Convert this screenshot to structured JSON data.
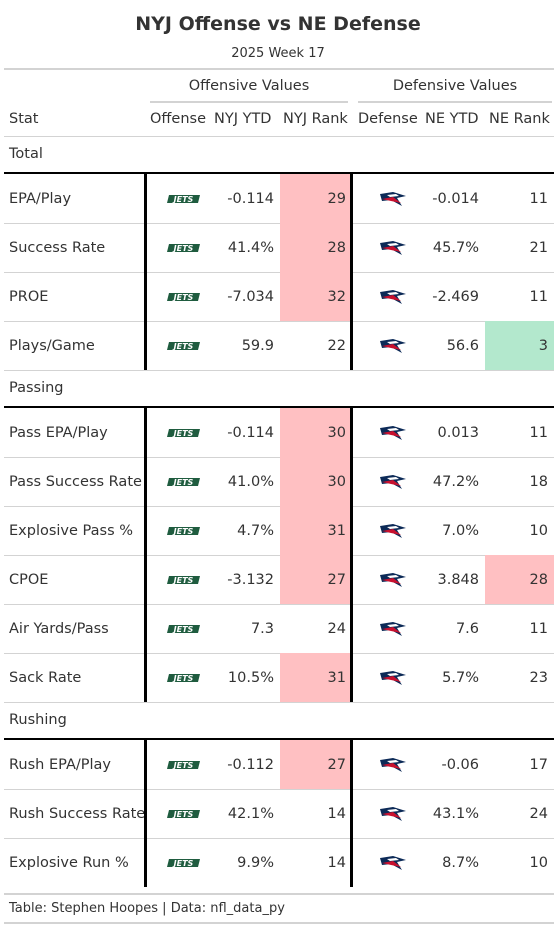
{
  "title": "NYJ Offense vs NE Defense",
  "subtitle": "2025 Week 17",
  "spanners": {
    "offense": "Offensive Values",
    "defense": "Defensive Values"
  },
  "columns": {
    "stat": "Stat",
    "offense": "Offense",
    "nyj_ytd": "NYJ YTD",
    "nyj_rank": "NYJ Rank",
    "defense": "Defense",
    "ne_ytd": "NE YTD",
    "ne_rank": "NE Rank"
  },
  "logos": {
    "offense": "nyj-jets-logo",
    "defense": "ne-patriots-logo",
    "jets_text": "JETS"
  },
  "colors": {
    "bad_rank": "#ffc0c2",
    "good_rank": "#b3e8cd",
    "jets_green": "#1f5c3f",
    "patriots_navy": "#0c2a57",
    "patriots_red": "#c8102e"
  },
  "chart_data": {
    "type": "table",
    "title": "NYJ Offense vs NE Defense",
    "subtitle": "2025 Week 17",
    "groups": [
      {
        "label": "Total",
        "rows": [
          {
            "stat": "EPA/Play",
            "nyj_ytd": "-0.114",
            "nyj_rank": "29",
            "nyj_hl": "bad",
            "ne_ytd": "-0.014",
            "ne_rank": "11",
            "ne_hl": ""
          },
          {
            "stat": "Success Rate",
            "nyj_ytd": "41.4%",
            "nyj_rank": "28",
            "nyj_hl": "bad",
            "ne_ytd": "45.7%",
            "ne_rank": "21",
            "ne_hl": ""
          },
          {
            "stat": "PROE",
            "nyj_ytd": "-7.034",
            "nyj_rank": "32",
            "nyj_hl": "bad",
            "ne_ytd": "-2.469",
            "ne_rank": "11",
            "ne_hl": ""
          },
          {
            "stat": "Plays/Game",
            "nyj_ytd": "59.9",
            "nyj_rank": "22",
            "nyj_hl": "",
            "ne_ytd": "56.6",
            "ne_rank": "3",
            "ne_hl": "good"
          }
        ]
      },
      {
        "label": "Passing",
        "rows": [
          {
            "stat": "Pass EPA/Play",
            "nyj_ytd": "-0.114",
            "nyj_rank": "30",
            "nyj_hl": "bad",
            "ne_ytd": "0.013",
            "ne_rank": "11",
            "ne_hl": ""
          },
          {
            "stat": "Pass Success Rate",
            "nyj_ytd": "41.0%",
            "nyj_rank": "30",
            "nyj_hl": "bad",
            "ne_ytd": "47.2%",
            "ne_rank": "18",
            "ne_hl": ""
          },
          {
            "stat": "Explosive Pass %",
            "nyj_ytd": "4.7%",
            "nyj_rank": "31",
            "nyj_hl": "bad",
            "ne_ytd": "7.0%",
            "ne_rank": "10",
            "ne_hl": ""
          },
          {
            "stat": "CPOE",
            "nyj_ytd": "-3.132",
            "nyj_rank": "27",
            "nyj_hl": "bad",
            "ne_ytd": "3.848",
            "ne_rank": "28",
            "ne_hl": "bad"
          },
          {
            "stat": "Air Yards/Pass",
            "nyj_ytd": "7.3",
            "nyj_rank": "24",
            "nyj_hl": "",
            "ne_ytd": "7.6",
            "ne_rank": "11",
            "ne_hl": ""
          },
          {
            "stat": "Sack Rate",
            "nyj_ytd": "10.5%",
            "nyj_rank": "31",
            "nyj_hl": "bad",
            "ne_ytd": "5.7%",
            "ne_rank": "23",
            "ne_hl": ""
          }
        ]
      },
      {
        "label": "Rushing",
        "rows": [
          {
            "stat": "Rush EPA/Play",
            "nyj_ytd": "-0.112",
            "nyj_rank": "27",
            "nyj_hl": "bad",
            "ne_ytd": "-0.06",
            "ne_rank": "17",
            "ne_hl": ""
          },
          {
            "stat": "Rush Success Rate",
            "nyj_ytd": "42.1%",
            "nyj_rank": "14",
            "nyj_hl": "",
            "ne_ytd": "43.1%",
            "ne_rank": "24",
            "ne_hl": ""
          },
          {
            "stat": "Explosive Run %",
            "nyj_ytd": "9.9%",
            "nyj_rank": "14",
            "nyj_hl": "",
            "ne_ytd": "8.7%",
            "ne_rank": "10",
            "ne_hl": ""
          }
        ]
      }
    ]
  },
  "footer": "Table: Stephen Hoopes | Data: nfl_data_py"
}
